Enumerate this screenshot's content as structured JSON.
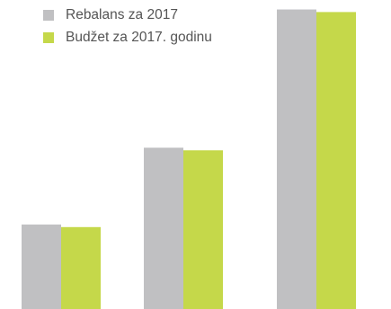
{
  "chart_data": {
    "type": "bar",
    "categories": [
      "",
      "",
      ""
    ],
    "series": [
      {
        "name": "Rebalans za 2017",
        "color": "#c0c0c2",
        "values": [
          33,
          63,
          117
        ]
      },
      {
        "name": "Budžet za 2017. godinu",
        "color": "#c5d84a",
        "values": [
          32,
          62,
          116
        ]
      }
    ],
    "title": "",
    "xlabel": "",
    "ylabel": "",
    "ylim": [
      0,
      120
    ],
    "grid": false,
    "legend": "top-left"
  }
}
